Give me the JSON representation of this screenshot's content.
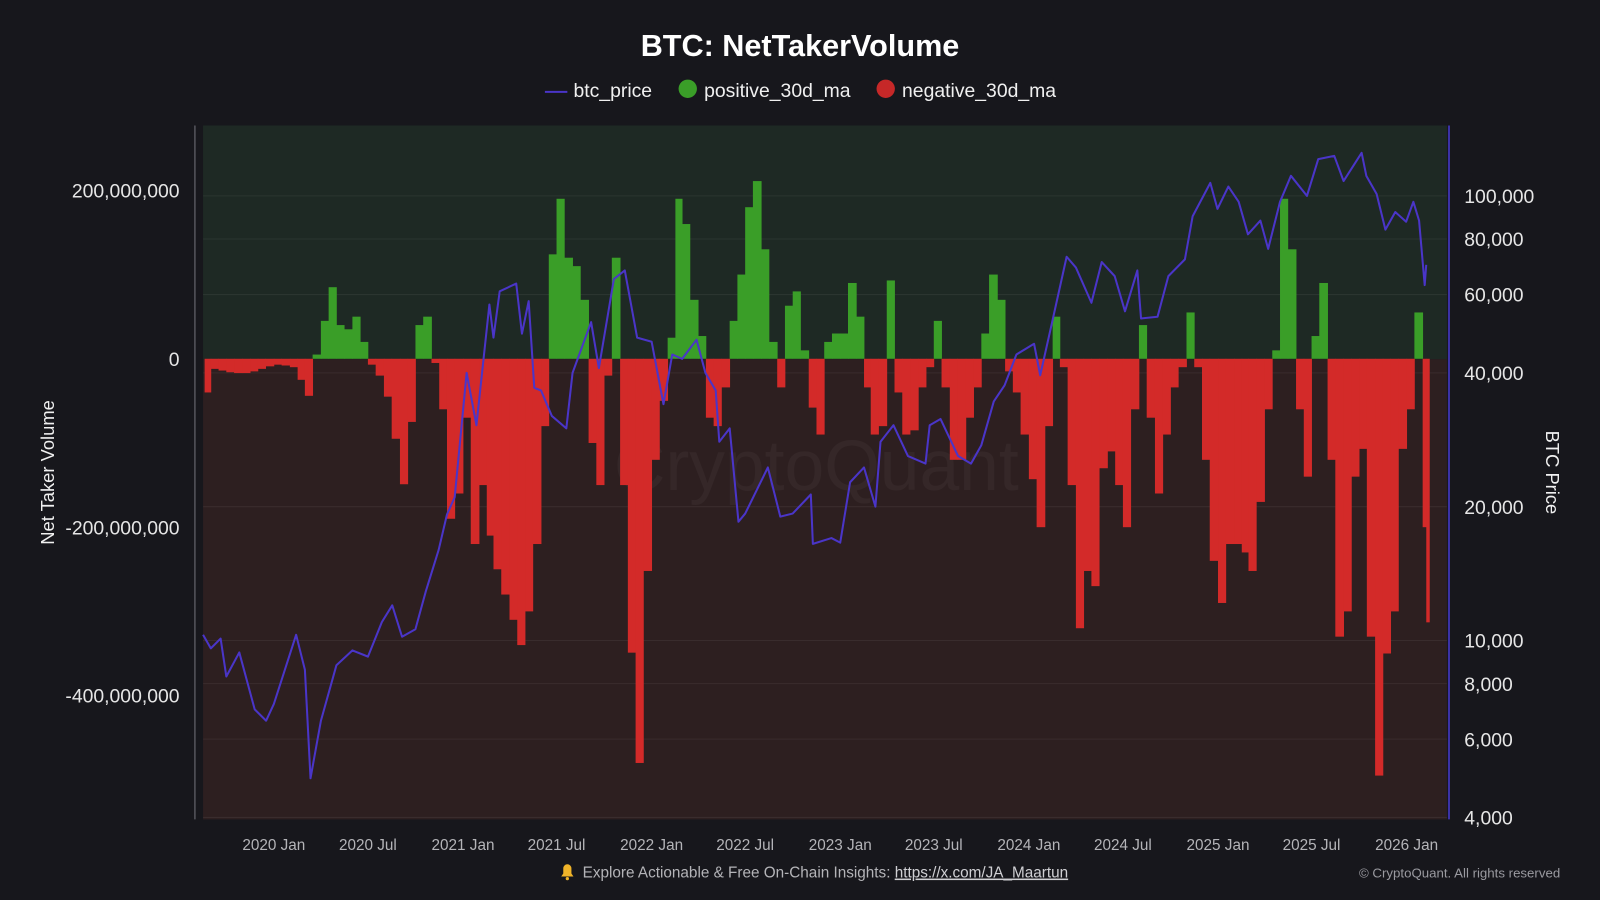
{
  "chart_data": {
    "type": "bar",
    "title": "BTC: NetTakerVolume",
    "colors": {
      "btc_price": "#4a35c8",
      "positive": "#3a9e28",
      "negative": "#d32a29",
      "bg_positive": "#1e2924",
      "bg_negative": "#2d1f20",
      "page_bg": "#17171c"
    },
    "legend": {
      "placement": "top-center",
      "items": [
        {
          "key": "btc_price",
          "label": "btc_price",
          "marker": "line"
        },
        {
          "key": "positive",
          "label": "positive_30d_ma",
          "marker": "circle"
        },
        {
          "key": "negative",
          "label": "negative_30d_ma",
          "marker": "circle"
        }
      ]
    },
    "ylabel": "Net Taker Volume",
    "y2label": "BTC Price",
    "ylim": [
      -547000000,
      277000000
    ],
    "y2lim": [
      3960,
      144000
    ],
    "y2scale": "log",
    "xlim": [
      "2019-08-17",
      "2026-03-20"
    ],
    "grid": true,
    "yticks": [
      {
        "value": 200000000,
        "label": "200,000,000"
      },
      {
        "value": 0,
        "label": "0"
      },
      {
        "value": -200000000,
        "label": "-200,000,000"
      },
      {
        "value": -400000000,
        "label": "-400,000,000"
      }
    ],
    "y2ticks": [
      {
        "value": 100000,
        "label": "100,000"
      },
      {
        "value": 80000,
        "label": "80,000"
      },
      {
        "value": 60000,
        "label": "60,000"
      },
      {
        "value": 40000,
        "label": "40,000"
      },
      {
        "value": 20000,
        "label": "20,000"
      },
      {
        "value": 10000,
        "label": "10,000"
      },
      {
        "value": 8000,
        "label": "8,000"
      },
      {
        "value": 6000,
        "label": "6,000"
      },
      {
        "value": 4000,
        "label": "4,000"
      }
    ],
    "xticks": [
      {
        "date": "2020-01-01",
        "label": "2020 Jan"
      },
      {
        "date": "2020-07-01",
        "label": "2020 Jul"
      },
      {
        "date": "2021-01-01",
        "label": "2021 Jan"
      },
      {
        "date": "2021-07-01",
        "label": "2021 Jul"
      },
      {
        "date": "2022-01-01",
        "label": "2022 Jan"
      },
      {
        "date": "2022-07-01",
        "label": "2022 Jul"
      },
      {
        "date": "2023-01-01",
        "label": "2023 Jan"
      },
      {
        "date": "2023-07-01",
        "label": "2023 Jul"
      },
      {
        "date": "2024-01-01",
        "label": "2024 Jan"
      },
      {
        "date": "2024-07-01",
        "label": "2024 Jul"
      },
      {
        "date": "2025-01-01",
        "label": "2025 Jan"
      },
      {
        "date": "2025-07-01",
        "label": "2025 Jul"
      },
      {
        "date": "2026-01-01",
        "label": "2026 Jan"
      }
    ],
    "net_taker_volume_30d_ma": [
      [
        "2019-08-20",
        -40000000
      ],
      [
        "2019-09-01",
        -12000000
      ],
      [
        "2019-09-16",
        -14000000
      ],
      [
        "2019-10-01",
        -16000000
      ],
      [
        "2019-10-16",
        -17000000
      ],
      [
        "2019-11-01",
        -17000000
      ],
      [
        "2019-11-16",
        -15000000
      ],
      [
        "2019-12-01",
        -12000000
      ],
      [
        "2019-12-16",
        -9000000
      ],
      [
        "2020-01-01",
        -7000000
      ],
      [
        "2020-01-16",
        -8000000
      ],
      [
        "2020-02-01",
        -10000000
      ],
      [
        "2020-02-16",
        -25000000
      ],
      [
        "2020-03-01",
        -44000000
      ],
      [
        "2020-03-16",
        5000000
      ],
      [
        "2020-04-01",
        45000000
      ],
      [
        "2020-04-16",
        85000000
      ],
      [
        "2020-05-01",
        40000000
      ],
      [
        "2020-05-16",
        35000000
      ],
      [
        "2020-06-01",
        50000000
      ],
      [
        "2020-06-16",
        20000000
      ],
      [
        "2020-07-01",
        -7000000
      ],
      [
        "2020-07-16",
        -20000000
      ],
      [
        "2020-08-01",
        -45000000
      ],
      [
        "2020-08-16",
        -95000000
      ],
      [
        "2020-09-01",
        -149000000
      ],
      [
        "2020-09-16",
        -75000000
      ],
      [
        "2020-10-01",
        40000000
      ],
      [
        "2020-10-16",
        50000000
      ],
      [
        "2020-11-01",
        -5000000
      ],
      [
        "2020-11-16",
        -60000000
      ],
      [
        "2020-12-01",
        -190000000
      ],
      [
        "2020-12-16",
        -160000000
      ],
      [
        "2021-01-01",
        -70000000
      ],
      [
        "2021-01-16",
        -220000000
      ],
      [
        "2021-02-01",
        -150000000
      ],
      [
        "2021-02-16",
        -210000000
      ],
      [
        "2021-03-01",
        -250000000
      ],
      [
        "2021-03-16",
        -280000000
      ],
      [
        "2021-04-01",
        -310000000
      ],
      [
        "2021-04-16",
        -340000000
      ],
      [
        "2021-05-01",
        -300000000
      ],
      [
        "2021-05-16",
        -220000000
      ],
      [
        "2021-06-01",
        -80000000
      ],
      [
        "2021-06-16",
        124000000
      ],
      [
        "2021-07-01",
        190000000
      ],
      [
        "2021-07-16",
        120000000
      ],
      [
        "2021-08-01",
        110000000
      ],
      [
        "2021-08-16",
        70000000
      ],
      [
        "2021-09-01",
        -100000000
      ],
      [
        "2021-09-16",
        -150000000
      ],
      [
        "2021-10-01",
        -20000000
      ],
      [
        "2021-10-16",
        120000000
      ],
      [
        "2021-11-01",
        -150000000
      ],
      [
        "2021-11-16",
        -349000000
      ],
      [
        "2021-12-01",
        -480000000
      ],
      [
        "2021-12-16",
        -252000000
      ],
      [
        "2022-01-01",
        -120000000
      ],
      [
        "2022-01-16",
        -50000000
      ],
      [
        "2022-02-01",
        25000000
      ],
      [
        "2022-02-16",
        190000000
      ],
      [
        "2022-03-01",
        160000000
      ],
      [
        "2022-03-16",
        70000000
      ],
      [
        "2022-04-01",
        27000000
      ],
      [
        "2022-04-16",
        -70000000
      ],
      [
        "2022-05-01",
        -80000000
      ],
      [
        "2022-05-16",
        -34000000
      ],
      [
        "2022-06-01",
        45000000
      ],
      [
        "2022-06-16",
        100000000
      ],
      [
        "2022-07-01",
        180000000
      ],
      [
        "2022-07-16",
        211000000
      ],
      [
        "2022-08-01",
        130000000
      ],
      [
        "2022-08-16",
        20000000
      ],
      [
        "2022-09-01",
        -34000000
      ],
      [
        "2022-09-16",
        63000000
      ],
      [
        "2022-10-01",
        80000000
      ],
      [
        "2022-10-16",
        10000000
      ],
      [
        "2022-11-01",
        -58000000
      ],
      [
        "2022-11-16",
        -90000000
      ],
      [
        "2022-12-01",
        20000000
      ],
      [
        "2022-12-16",
        30000000
      ],
      [
        "2023-01-01",
        30000000
      ],
      [
        "2023-01-16",
        90000000
      ],
      [
        "2023-02-01",
        50000000
      ],
      [
        "2023-02-16",
        -34000000
      ],
      [
        "2023-03-01",
        -90000000
      ],
      [
        "2023-03-16",
        -80000000
      ],
      [
        "2023-04-01",
        93000000
      ],
      [
        "2023-04-16",
        -40000000
      ],
      [
        "2023-05-01",
        -90000000
      ],
      [
        "2023-05-16",
        -85000000
      ],
      [
        "2023-06-01",
        -34000000
      ],
      [
        "2023-06-16",
        -10000000
      ],
      [
        "2023-07-01",
        45000000
      ],
      [
        "2023-07-16",
        -34000000
      ],
      [
        "2023-08-01",
        -120000000
      ],
      [
        "2023-08-16",
        -120000000
      ],
      [
        "2023-09-01",
        -70000000
      ],
      [
        "2023-09-16",
        -34000000
      ],
      [
        "2023-10-01",
        30000000
      ],
      [
        "2023-10-16",
        100000000
      ],
      [
        "2023-11-01",
        70000000
      ],
      [
        "2023-11-16",
        -15000000
      ],
      [
        "2023-12-01",
        -40000000
      ],
      [
        "2023-12-16",
        -90000000
      ],
      [
        "2024-01-01",
        -143000000
      ],
      [
        "2024-01-16",
        -200000000
      ],
      [
        "2024-02-01",
        -80000000
      ],
      [
        "2024-02-16",
        50000000
      ],
      [
        "2024-03-01",
        -10000000
      ],
      [
        "2024-03-16",
        -150000000
      ],
      [
        "2024-04-01",
        -320000000
      ],
      [
        "2024-04-16",
        -252000000
      ],
      [
        "2024-05-01",
        -270000000
      ],
      [
        "2024-05-16",
        -130000000
      ],
      [
        "2024-06-01",
        -110000000
      ],
      [
        "2024-06-16",
        -150000000
      ],
      [
        "2024-07-01",
        -200000000
      ],
      [
        "2024-07-16",
        -60000000
      ],
      [
        "2024-08-01",
        40000000
      ],
      [
        "2024-08-16",
        -70000000
      ],
      [
        "2024-09-01",
        -160000000
      ],
      [
        "2024-09-16",
        -90000000
      ],
      [
        "2024-10-01",
        -34000000
      ],
      [
        "2024-10-16",
        -10000000
      ],
      [
        "2024-11-01",
        55000000
      ],
      [
        "2024-11-16",
        -10000000
      ],
      [
        "2024-12-01",
        -120000000
      ],
      [
        "2024-12-16",
        -240000000
      ],
      [
        "2025-01-01",
        -290000000
      ],
      [
        "2025-01-16",
        -220000000
      ],
      [
        "2025-02-01",
        -220000000
      ],
      [
        "2025-02-16",
        -230000000
      ],
      [
        "2025-03-01",
        -252000000
      ],
      [
        "2025-03-16",
        -170000000
      ],
      [
        "2025-04-01",
        -60000000
      ],
      [
        "2025-04-16",
        10000000
      ],
      [
        "2025-05-01",
        190000000
      ],
      [
        "2025-05-16",
        130000000
      ],
      [
        "2025-06-01",
        -60000000
      ],
      [
        "2025-06-16",
        -140000000
      ],
      [
        "2025-07-01",
        27000000
      ],
      [
        "2025-07-16",
        90000000
      ],
      [
        "2025-08-01",
        -120000000
      ],
      [
        "2025-08-16",
        -330000000
      ],
      [
        "2025-09-01",
        -300000000
      ],
      [
        "2025-09-16",
        -140000000
      ],
      [
        "2025-10-01",
        -107000000
      ],
      [
        "2025-10-16",
        -330000000
      ],
      [
        "2025-11-01",
        -495000000
      ],
      [
        "2025-11-16",
        -350000000
      ],
      [
        "2025-12-01",
        -300000000
      ],
      [
        "2025-12-16",
        -107000000
      ],
      [
        "2026-01-01",
        -60000000
      ],
      [
        "2026-01-16",
        55000000
      ],
      [
        "2026-02-01",
        -200000000
      ],
      [
        "2026-02-08",
        -313000000
      ]
    ],
    "btc_price": [
      [
        "2019-08-17",
        10300
      ],
      [
        "2019-09-01",
        9600
      ],
      [
        "2019-09-20",
        10100
      ],
      [
        "2019-10-01",
        8300
      ],
      [
        "2019-10-26",
        9400
      ],
      [
        "2019-11-25",
        7000
      ],
      [
        "2019-12-17",
        6600
      ],
      [
        "2020-01-01",
        7200
      ],
      [
        "2020-02-13",
        10300
      ],
      [
        "2020-03-01",
        8600
      ],
      [
        "2020-03-12",
        4900
      ],
      [
        "2020-04-01",
        6600
      ],
      [
        "2020-05-01",
        8800
      ],
      [
        "2020-06-01",
        9500
      ],
      [
        "2020-07-01",
        9200
      ],
      [
        "2020-07-28",
        11000
      ],
      [
        "2020-08-17",
        12000
      ],
      [
        "2020-09-05",
        10200
      ],
      [
        "2020-10-01",
        10600
      ],
      [
        "2020-10-21",
        12900
      ],
      [
        "2020-11-15",
        16000
      ],
      [
        "2020-12-01",
        19200
      ],
      [
        "2020-12-16",
        21000
      ],
      [
        "2021-01-08",
        40000
      ],
      [
        "2021-01-27",
        30500
      ],
      [
        "2021-02-21",
        57000
      ],
      [
        "2021-03-01",
        48000
      ],
      [
        "2021-03-13",
        61000
      ],
      [
        "2021-04-14",
        63500
      ],
      [
        "2021-04-25",
        49000
      ],
      [
        "2021-05-08",
        58000
      ],
      [
        "2021-05-19",
        37000
      ],
      [
        "2021-06-01",
        36500
      ],
      [
        "2021-06-22",
        32000
      ],
      [
        "2021-07-20",
        30000
      ],
      [
        "2021-08-01",
        40000
      ],
      [
        "2021-09-06",
        52000
      ],
      [
        "2021-09-21",
        41000
      ],
      [
        "2021-10-20",
        65000
      ],
      [
        "2021-11-10",
        68000
      ],
      [
        "2021-12-04",
        48000
      ],
      [
        "2022-01-01",
        47000
      ],
      [
        "2022-01-24",
        34000
      ],
      [
        "2022-02-10",
        44000
      ],
      [
        "2022-03-01",
        43000
      ],
      [
        "2022-03-29",
        47500
      ],
      [
        "2022-04-15",
        40000
      ],
      [
        "2022-05-05",
        36500
      ],
      [
        "2022-05-12",
        28000
      ],
      [
        "2022-06-01",
        30000
      ],
      [
        "2022-06-18",
        18500
      ],
      [
        "2022-07-01",
        19300
      ],
      [
        "2022-08-14",
        24500
      ],
      [
        "2022-09-07",
        19000
      ],
      [
        "2022-10-01",
        19300
      ],
      [
        "2022-11-05",
        21300
      ],
      [
        "2022-11-09",
        16500
      ],
      [
        "2022-12-15",
        17000
      ],
      [
        "2023-01-01",
        16600
      ],
      [
        "2023-01-20",
        22700
      ],
      [
        "2023-02-16",
        24500
      ],
      [
        "2023-03-10",
        20000
      ],
      [
        "2023-03-20",
        28000
      ],
      [
        "2023-04-14",
        30500
      ],
      [
        "2023-05-12",
        26000
      ],
      [
        "2023-06-15",
        25000
      ],
      [
        "2023-06-23",
        30500
      ],
      [
        "2023-07-14",
        31500
      ],
      [
        "2023-08-17",
        26000
      ],
      [
        "2023-09-11",
        25000
      ],
      [
        "2023-10-01",
        27500
      ],
      [
        "2023-10-25",
        34500
      ],
      [
        "2023-11-15",
        37500
      ],
      [
        "2023-12-08",
        44000
      ],
      [
        "2024-01-11",
        46500
      ],
      [
        "2024-01-23",
        39500
      ],
      [
        "2024-02-15",
        52000
      ],
      [
        "2024-03-14",
        73000
      ],
      [
        "2024-04-01",
        69000
      ],
      [
        "2024-05-01",
        57500
      ],
      [
        "2024-05-21",
        71000
      ],
      [
        "2024-06-15",
        66000
      ],
      [
        "2024-07-05",
        55000
      ],
      [
        "2024-07-29",
        68000
      ],
      [
        "2024-08-05",
        53000
      ],
      [
        "2024-09-06",
        53500
      ],
      [
        "2024-09-27",
        66000
      ],
      [
        "2024-10-29",
        72000
      ],
      [
        "2024-11-13",
        90000
      ],
      [
        "2024-12-17",
        107000
      ],
      [
        "2024-12-31",
        93500
      ],
      [
        "2025-01-21",
        105000
      ],
      [
        "2025-02-10",
        97000
      ],
      [
        "2025-02-28",
        82000
      ],
      [
        "2025-03-24",
        88000
      ],
      [
        "2025-04-08",
        76000
      ],
      [
        "2025-05-01",
        97000
      ],
      [
        "2025-05-22",
        111000
      ],
      [
        "2025-06-22",
        100000
      ],
      [
        "2025-07-14",
        121000
      ],
      [
        "2025-08-14",
        123000
      ],
      [
        "2025-09-01",
        108000
      ],
      [
        "2025-10-06",
        125000
      ],
      [
        "2025-10-15",
        111000
      ],
      [
        "2025-11-04",
        101000
      ],
      [
        "2025-11-21",
        84000
      ],
      [
        "2025-12-10",
        92000
      ],
      [
        "2025-12-31",
        87500
      ],
      [
        "2026-01-14",
        97000
      ],
      [
        "2026-01-25",
        88000
      ],
      [
        "2026-02-05",
        63000
      ],
      [
        "2026-02-08",
        70000
      ]
    ]
  },
  "watermark": "CryptoQuant",
  "footer": {
    "icon": "bell-icon",
    "text": "Explore Actionable & Free On-Chain Insights:",
    "link": "https://x.com/JA_Maartun",
    "copyright": "© CryptoQuant. All rights reserved"
  }
}
